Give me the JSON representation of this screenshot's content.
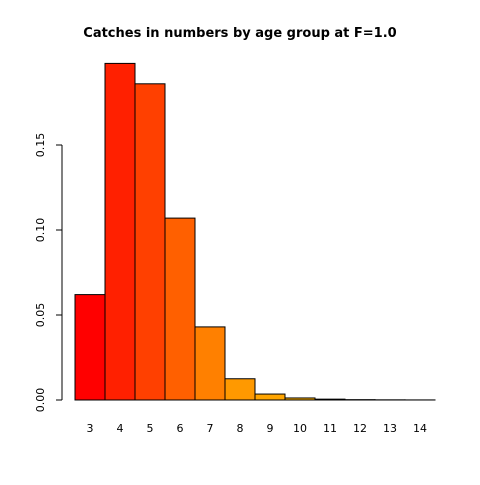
{
  "chart_data": {
    "type": "bar",
    "title": "Catches in numbers by age group at F=1.0",
    "xlabel": "",
    "ylabel": "",
    "categories": [
      "3",
      "4",
      "5",
      "6",
      "7",
      "8",
      "9",
      "10",
      "11",
      "12",
      "13",
      "14"
    ],
    "values": [
      0.062,
      0.198,
      0.186,
      0.107,
      0.043,
      0.0125,
      0.0035,
      0.0012,
      0.0005,
      0.0002,
      0.0001,
      5e-05
    ],
    "colors": [
      "#FF0000",
      "#FF2000",
      "#FF4000",
      "#FF6000",
      "#FF8000",
      "#FF9900",
      "#FFA500",
      "#FFB000",
      "#FFBB00",
      "#FFC600",
      "#FFD000",
      "#FFDA00"
    ],
    "ylim": [
      0,
      0.2
    ],
    "yticks": [
      0.0,
      0.05,
      0.1,
      0.15
    ],
    "ytick_labels": [
      "0.00",
      "0.05",
      "0.10",
      "0.15"
    ],
    "grid": false,
    "legend": "none"
  }
}
